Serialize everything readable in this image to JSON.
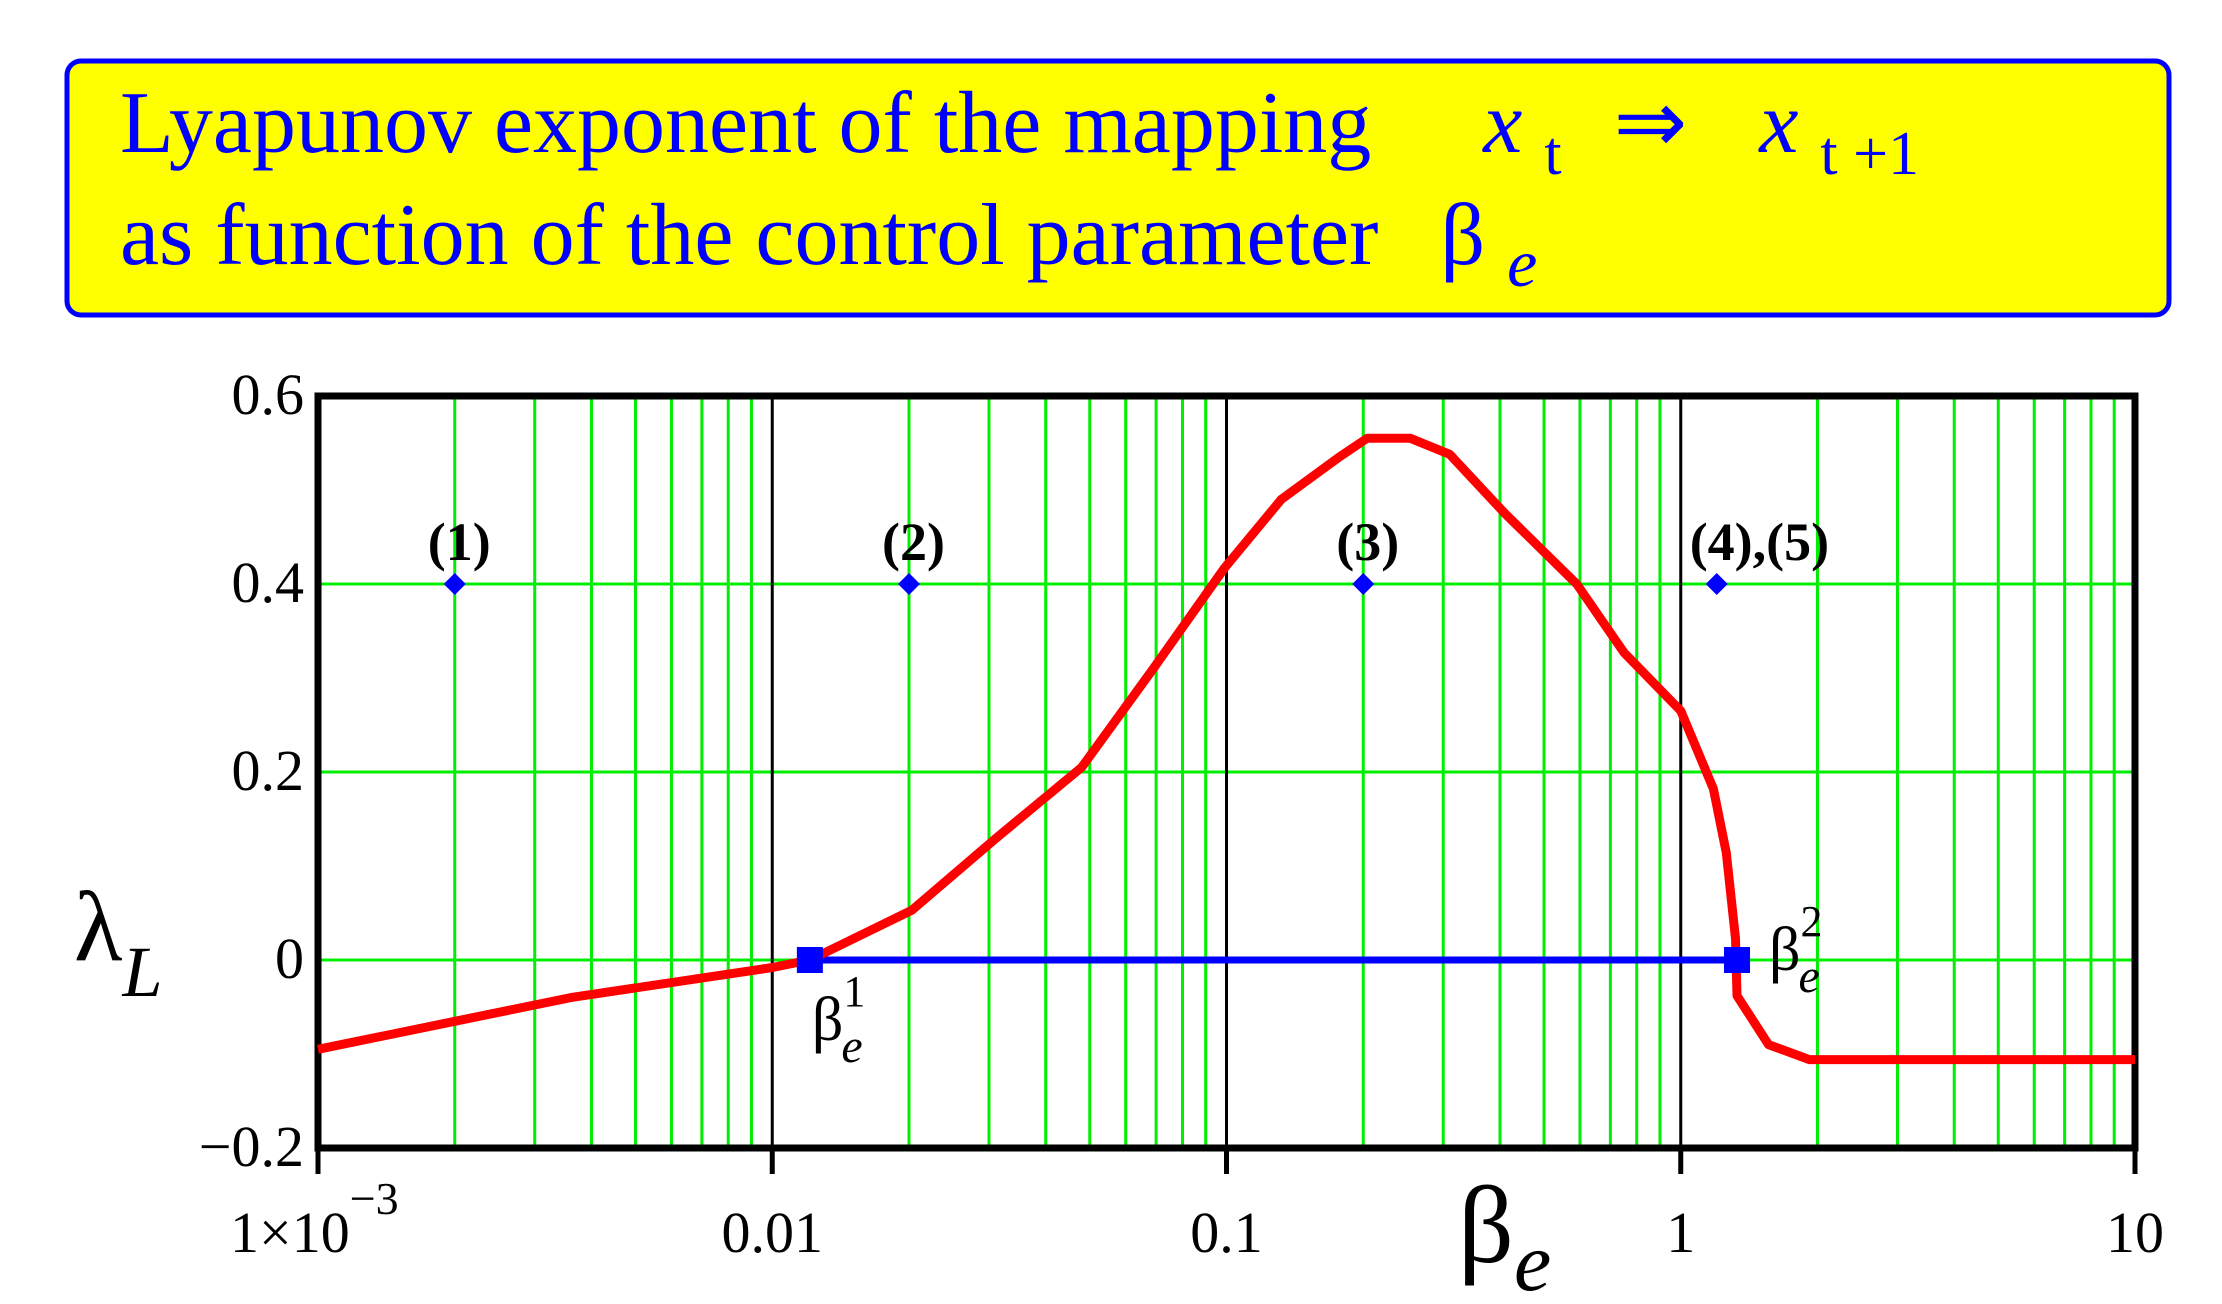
{
  "title": {
    "line1_text": "Lyapunov  exponent  of  the  mapping",
    "line1_var_from": "x",
    "line1_sub_from": "t",
    "arrow": "⇒",
    "line1_var_to": "x",
    "line1_sub_to": "t +1",
    "line2_text": "as  function   of  the  control  parameter",
    "line2_symbol": "β",
    "line2_sub": "e",
    "background": "#ffff00",
    "border_color": "#0000ff",
    "text_color": "#0000ff"
  },
  "chart_data": {
    "type": "line",
    "x_scale": "log",
    "xlim": [
      0.001,
      10
    ],
    "ylim": [
      -0.2,
      0.6
    ],
    "xlabel": "β",
    "xlabel_sub": "e",
    "ylabel": "λ",
    "ylabel_sub": "L",
    "x_ticks": [
      {
        "value": 0.001,
        "label": "1×10",
        "sup": "−3"
      },
      {
        "value": 0.01,
        "label": "0.01",
        "sup": ""
      },
      {
        "value": 0.1,
        "label": "0.1",
        "sup": ""
      },
      {
        "value": 1,
        "label": "1",
        "sup": ""
      },
      {
        "value": 10,
        "label": "10",
        "sup": ""
      }
    ],
    "y_ticks": [
      {
        "value": 0.6,
        "label": "0.6"
      },
      {
        "value": 0.4,
        "label": "0.4"
      },
      {
        "value": 0.2,
        "label": "0.2"
      },
      {
        "value": 0,
        "label": "0"
      },
      {
        "value": -0.2,
        "label": "−0.2"
      }
    ],
    "grid": true,
    "grid_color": "#00ee00",
    "major_grid_color": "#000000",
    "series": [
      {
        "color": "#ff0000",
        "x": [
          0.001,
          0.0036,
          0.01,
          0.0121,
          0.0203,
          0.031,
          0.048,
          0.069,
          0.099,
          0.132,
          0.177,
          0.204,
          0.254,
          0.31,
          0.41,
          0.59,
          0.75,
          1.0,
          1.18,
          1.26,
          1.32,
          1.33,
          1.56,
          1.92,
          10
        ],
        "y": [
          -0.095,
          -0.04,
          -0.008,
          0,
          0.053,
          0.129,
          0.205,
          0.31,
          0.417,
          0.49,
          0.535,
          0.555,
          0.555,
          0.538,
          0.475,
          0.4,
          0.327,
          0.265,
          0.182,
          0.114,
          0.023,
          -0.038,
          -0.09,
          -0.106,
          -0.106
        ]
      }
    ],
    "threshold_segment": {
      "color": "#0000ff",
      "y": 0,
      "x_from": 0.0121,
      "x_to": 1.33,
      "start_label": "β",
      "start_sub": "e",
      "start_sup": "1",
      "end_label": "β",
      "end_sub": "e",
      "end_sup": "2"
    },
    "annotations": [
      {
        "x": 0.002,
        "y": 0.4,
        "label": "(1)"
      },
      {
        "x": 0.02,
        "y": 0.4,
        "label": "(2)"
      },
      {
        "x": 0.2,
        "y": 0.4,
        "label": "(3)"
      },
      {
        "x": 1.2,
        "y": 0.4,
        "label": "(4),(5)"
      }
    ],
    "annotation_color": "#0000ff"
  }
}
